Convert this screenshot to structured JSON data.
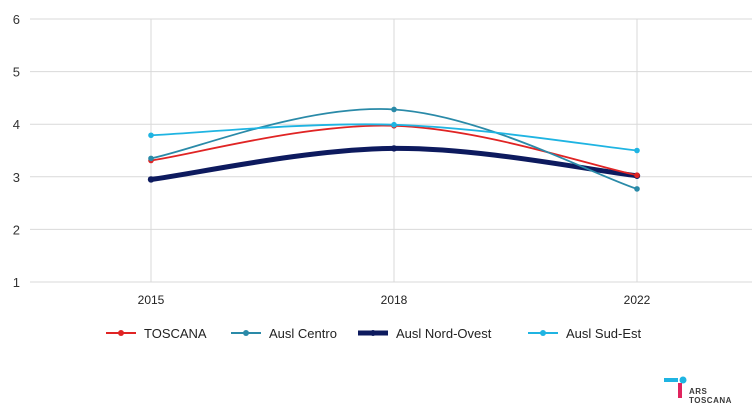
{
  "chart_data": {
    "type": "line",
    "title": "",
    "xlabel": "",
    "ylabel": "",
    "x": [
      "2015",
      "2018",
      "2022"
    ],
    "ylim": [
      1,
      6
    ],
    "yticks": [
      "1",
      "2",
      "3",
      "4",
      "5",
      "6"
    ],
    "grid": true,
    "legend_position": "bottom",
    "series": [
      {
        "name": "TOSCANA",
        "values": [
          3.31,
          3.97,
          3.03
        ],
        "color": "#e02424",
        "weight": "normal"
      },
      {
        "name": "Ausl Centro",
        "values": [
          3.35,
          4.28,
          2.77
        ],
        "color": "#2a8aa8",
        "weight": "normal"
      },
      {
        "name": "Ausl Nord-Ovest",
        "values": [
          2.95,
          3.54,
          3.02
        ],
        "color": "#0d1a5e",
        "weight": "thick"
      },
      {
        "name": "Ausl Sud-Est",
        "values": [
          3.79,
          3.99,
          3.5
        ],
        "color": "#1fb4e2",
        "weight": "normal"
      }
    ]
  },
  "logo": {
    "text": "ARS TOSCANA",
    "colors": [
      "#1fb4e2",
      "#e0245e",
      "#3a3a3a"
    ]
  }
}
